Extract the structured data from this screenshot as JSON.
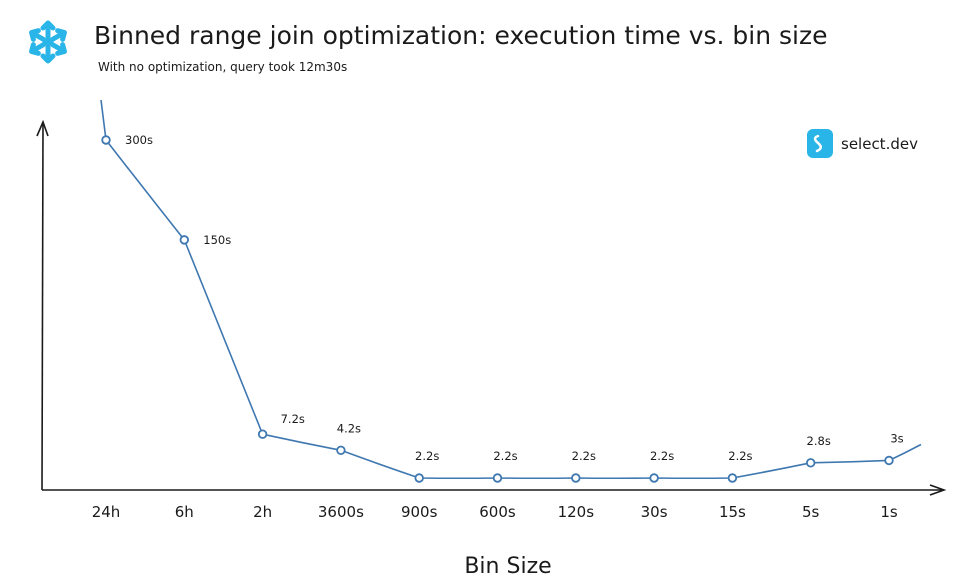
{
  "header": {
    "title": "Binned range join optimization: execution time vs. bin size",
    "subtitle": "With no optimization, query took 12m30s"
  },
  "brand": {
    "logo_icon": "snowflake-icon",
    "logo_color": "#29b5e8",
    "watermark_icon": "select-dev-logo-icon",
    "watermark_text": "select.dev",
    "watermark_color": "#29b5e8"
  },
  "colors": {
    "line": "#3f78b0",
    "marker": "#3f78b0",
    "axis": "#1a1a1a"
  },
  "chart_data": {
    "type": "line",
    "title": "Binned range join optimization: execution time vs. bin size",
    "subtitle": "With no optimization, query took 12m30s",
    "xlabel": "Bin Size",
    "ylabel": "",
    "categories": [
      "24h",
      "6h",
      "2h",
      "3600s",
      "900s",
      "600s",
      "120s",
      "30s",
      "15s",
      "5s",
      "1s"
    ],
    "values": [
      300,
      150,
      7.2,
      4.2,
      2.2,
      2.2,
      2.2,
      2.2,
      2.2,
      2.8,
      3
    ],
    "data_labels": [
      "300s",
      "150s",
      "7.2s",
      "4.2s",
      "2.2s",
      "2.2s",
      "2.2s",
      "2.2s",
      "2.2s",
      "2.8s",
      "3s"
    ],
    "y_unit": "s",
    "y_axis_ticks": "none",
    "grid": false,
    "legend": "none"
  }
}
